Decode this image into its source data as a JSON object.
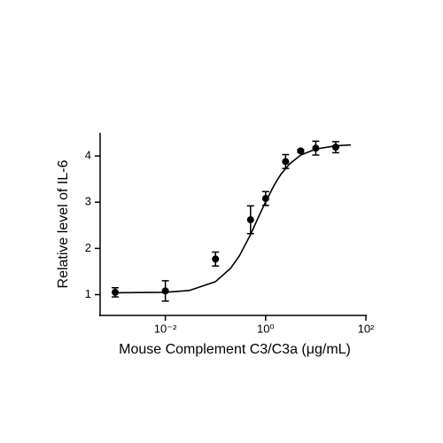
{
  "chart_data": {
    "type": "scatter",
    "x_label": "Mouse Complement C3/C3a (μg/mL)",
    "y_label": "Relative level of IL-6",
    "xscale": "log",
    "xlim": [
      0.0005,
      100
    ],
    "ylim": [
      0.55,
      4.5
    ],
    "xticks": [
      {
        "value": 0.01,
        "label": "10⁻²"
      },
      {
        "value": 1,
        "label": "10⁰"
      },
      {
        "value": 100,
        "label": "10²"
      }
    ],
    "yticks": [
      1,
      2,
      3,
      4
    ],
    "color": "#000000",
    "points": {
      "x": [
        0.001,
        0.01,
        0.1,
        0.5,
        1,
        2.5,
        5,
        10,
        25
      ],
      "values": [
        1.05,
        1.08,
        1.77,
        2.62,
        3.08,
        3.88,
        4.11,
        4.17,
        4.19
      ],
      "errors": [
        0.1,
        0.22,
        0.15,
        0.3,
        0.15,
        0.15,
        0.03,
        0.15,
        0.12
      ]
    },
    "curve": {
      "x": [
        0.001,
        0.01,
        0.03,
        0.1,
        0.2,
        0.3,
        0.5,
        0.7,
        1,
        1.5,
        2,
        3,
        5,
        10,
        25,
        50
      ],
      "values": [
        1.04,
        1.05,
        1.09,
        1.28,
        1.57,
        1.84,
        2.3,
        2.65,
        3.01,
        3.38,
        3.6,
        3.83,
        4.02,
        4.15,
        4.22,
        4.24
      ]
    }
  }
}
